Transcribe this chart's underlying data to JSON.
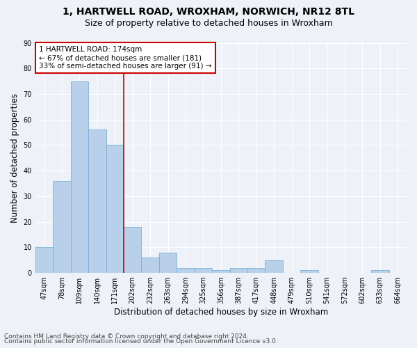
{
  "title1": "1, HARTWELL ROAD, WROXHAM, NORWICH, NR12 8TL",
  "title2": "Size of property relative to detached houses in Wroxham",
  "xlabel": "Distribution of detached houses by size in Wroxham",
  "ylabel": "Number of detached properties",
  "categories": [
    "47sqm",
    "78sqm",
    "109sqm",
    "140sqm",
    "171sqm",
    "202sqm",
    "232sqm",
    "263sqm",
    "294sqm",
    "325sqm",
    "356sqm",
    "387sqm",
    "417sqm",
    "448sqm",
    "479sqm",
    "510sqm",
    "541sqm",
    "572sqm",
    "602sqm",
    "633sqm",
    "664sqm"
  ],
  "values": [
    10,
    36,
    75,
    56,
    50,
    18,
    6,
    8,
    2,
    2,
    1,
    2,
    2,
    5,
    0,
    1,
    0,
    0,
    0,
    1,
    0
  ],
  "bar_color": "#b8d0ea",
  "bar_edge_color": "#7aafd4",
  "vline_x_index": 4.5,
  "annotation_line1": "1 HARTWELL ROAD: 174sqm",
  "annotation_line2": "← 67% of detached houses are smaller (181)",
  "annotation_line3": "33% of semi-detached houses are larger (91) →",
  "annotation_box_color": "#ffffff",
  "annotation_box_edge": "#cc0000",
  "vline_color": "#cc0000",
  "ylim": [
    0,
    90
  ],
  "yticks": [
    0,
    10,
    20,
    30,
    40,
    50,
    60,
    70,
    80,
    90
  ],
  "footer1": "Contains HM Land Registry data © Crown copyright and database right 2024.",
  "footer2": "Contains public sector information licensed under the Open Government Licence v3.0.",
  "bg_color": "#eef2f8",
  "grid_color": "#ffffff",
  "title_fontsize": 10,
  "subtitle_fontsize": 9,
  "axis_label_fontsize": 8.5,
  "tick_fontsize": 7,
  "footer_fontsize": 6.5
}
